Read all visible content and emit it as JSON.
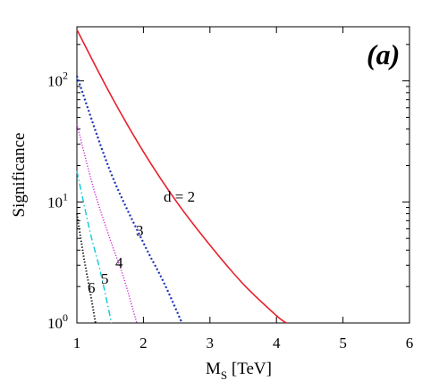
{
  "chart_data": {
    "type": "line",
    "panel_label": "(a)",
    "xlabel": {
      "main": "M",
      "sub": "S",
      "unit": " [TeV]"
    },
    "ylabel": "Significance",
    "xlim": [
      1,
      6
    ],
    "ylim": [
      1,
      280
    ],
    "yscale": "log",
    "x_ticks": [
      "1",
      "2",
      "3",
      "4",
      "5",
      "6"
    ],
    "y_ticks": [
      {
        "base": "10",
        "exp": "0",
        "value": 1
      },
      {
        "base": "10",
        "exp": "1",
        "value": 10
      },
      {
        "base": "10",
        "exp": "2",
        "value": 100
      }
    ],
    "grid": false,
    "series": [
      {
        "name": "d = 2",
        "label": "d = 2",
        "color": "#e8202a",
        "dash": "",
        "width": 1.6,
        "x": [
          1.0,
          1.5,
          2.0,
          2.5,
          3.0,
          3.5,
          4.0,
          4.15
        ],
        "y": [
          265,
          78,
          26,
          10,
          4.4,
          2.1,
          1.15,
          1.0
        ]
      },
      {
        "name": "3",
        "label": "3",
        "color": "#1a2fb8",
        "dash": "2,2.5",
        "width": 2.2,
        "x": [
          1.0,
          1.5,
          2.0,
          2.3,
          2.58
        ],
        "y": [
          110,
          18,
          4.6,
          2.2,
          1.0
        ]
      },
      {
        "name": "4",
        "label": "4",
        "color": "#d020d8",
        "dash": "1.2,1.8",
        "width": 1.4,
        "x": [
          1.0,
          1.25,
          1.5,
          1.7,
          1.9
        ],
        "y": [
          44,
          13,
          4.9,
          2.4,
          1.0
        ]
      },
      {
        "name": "5",
        "label": "5",
        "color": "#10c8d8",
        "dash": "7,3,1.5,3",
        "width": 1.4,
        "x": [
          1.0,
          1.2,
          1.35,
          1.52
        ],
        "y": [
          18,
          5.6,
          2.7,
          1.0
        ]
      },
      {
        "name": "6",
        "label": "6",
        "color": "#000000",
        "dash": "1.2,2.2",
        "width": 2.0,
        "x": [
          1.0,
          1.1,
          1.2,
          1.28
        ],
        "y": [
          8.0,
          3.6,
          1.8,
          1.0
        ]
      }
    ],
    "annotations": [
      {
        "text": "d = 2",
        "series": "d = 2"
      },
      {
        "text": "3",
        "series": "3"
      },
      {
        "text": "4",
        "series": "4"
      },
      {
        "text": "5",
        "series": "5"
      },
      {
        "text": "6",
        "series": "6"
      }
    ]
  }
}
